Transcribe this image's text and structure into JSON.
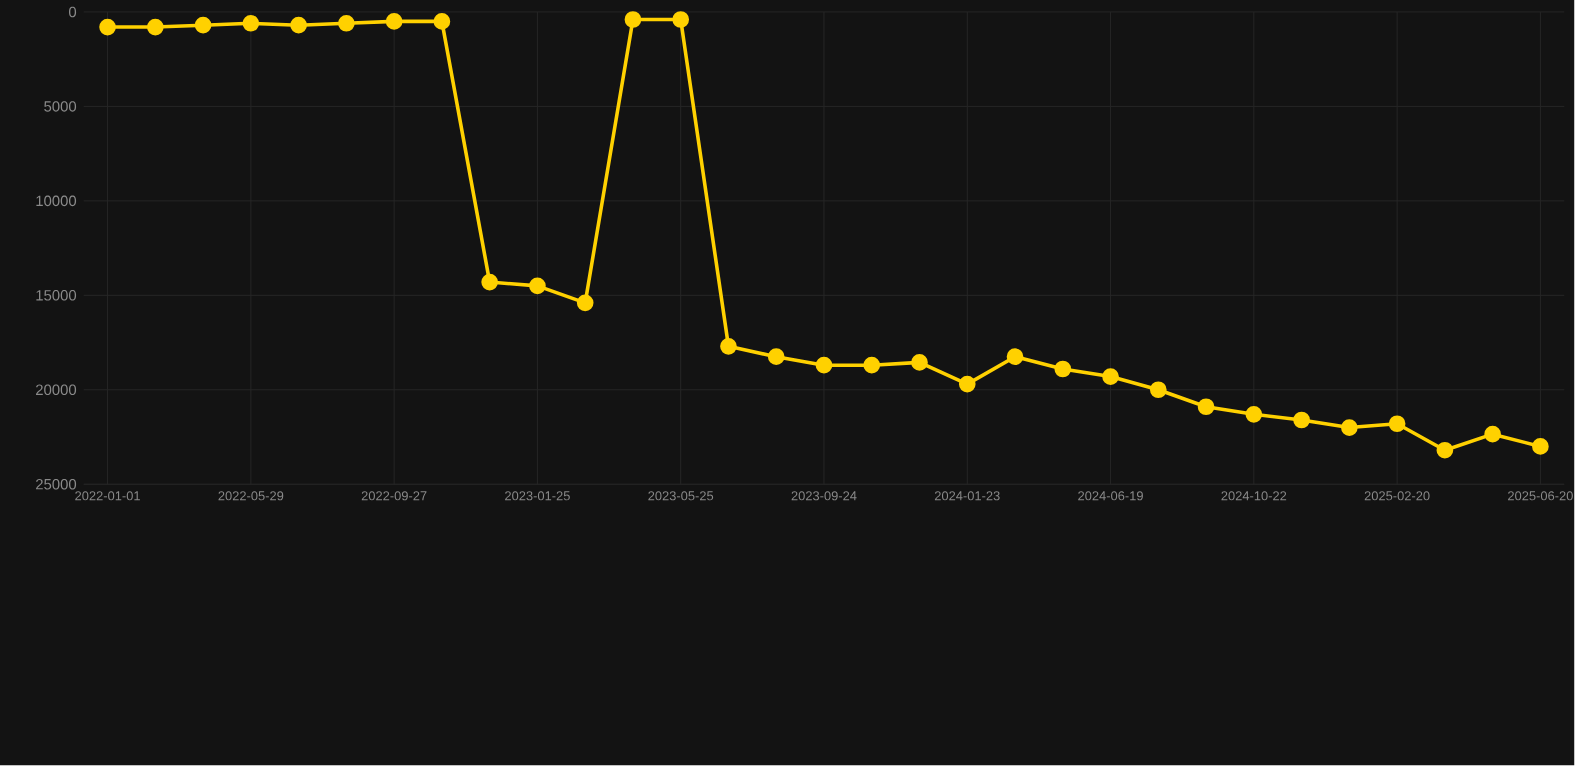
{
  "chart_data": {
    "type": "line",
    "categories": [
      "2022-01-01",
      null,
      null,
      "2022-05-29",
      null,
      null,
      "2022-09-27",
      null,
      null,
      "2023-01-25",
      null,
      null,
      "2023-05-25",
      null,
      null,
      "2023-09-24",
      null,
      null,
      "2024-01-23",
      null,
      null,
      "2024-06-19",
      null,
      null,
      "2024-10-22",
      null,
      null,
      "2025-02-20",
      null,
      null,
      "2025-06-20"
    ],
    "series": [
      {
        "color": "#ffd100",
        "values": [
          800,
          800,
          700,
          600,
          700,
          600,
          500,
          500,
          14300,
          14500,
          15400,
          400,
          400,
          17700,
          18250,
          18700,
          18700,
          18550,
          19700,
          18250,
          18900,
          19300,
          20000,
          20900,
          21300,
          21600,
          22000,
          21800,
          23200,
          22350,
          23000
        ]
      }
    ],
    "ylim": [
      25000,
      0
    ],
    "yticks": [
      0,
      5000,
      10000,
      15000,
      20000,
      25000
    ],
    "grid": true,
    "marker": "circle",
    "line_style": "solid"
  }
}
